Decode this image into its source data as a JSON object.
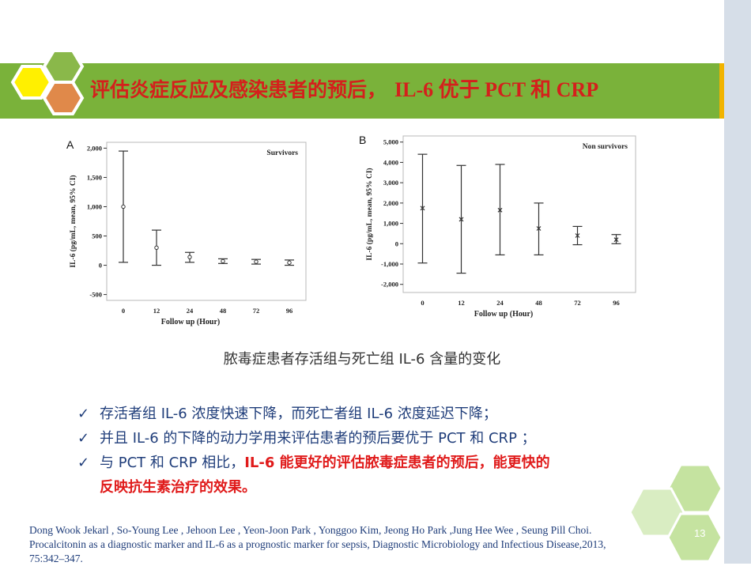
{
  "slide": {
    "title_main": "评估炎症反应及感染患者的预后，",
    "title_tail": "IL-6 优于 PCT 和 CRP",
    "caption": "脓毒症患者存活组与死亡组 IL-6 含量的变化",
    "bullets": [
      {
        "text": "存活者组 IL-6 浓度快速下降，而死亡者组 IL-6 浓度延迟下降；"
      },
      {
        "text": "并且 IL-6 的下降的动力学用来评估患者的预后要优于 PCT 和 CRP ；"
      },
      {
        "text": "与 PCT 和 CRP 相比，",
        "emphasis": "IL-6 能更好的评估脓毒症患者的预后，能更快的",
        "continuation": "反映抗生素治疗的效果。"
      }
    ],
    "citation_line1": "Dong Wook Jekarl , So-Young Lee , Jehoon Lee , Yeon-Joon Park , Yonggoo Kim, Jeong Ho Park ,Jung Hee Wee , Seung Pill Choi.",
    "citation_line2": "Procalcitonin as a diagnostic marker and IL-6 as a prognostic marker for sepsis, Diagnostic Microbiology and Infectious Disease,2013,",
    "citation_line3": "75:342–347.",
    "page_number": "13",
    "colors": {
      "title_bar": "#7ab23a",
      "title_text": "#d4201c",
      "bullet_text": "#1f3d7a",
      "emphasis": "#e01b1b",
      "side_rail": "#d6dee8"
    }
  },
  "chart_data": [
    {
      "type": "errorbar",
      "panel_label": "A",
      "legend": "Survivors",
      "xlabel": "Follow up (Hour)",
      "ylabel": "IL-6 (pg/mL, mean, 95% CI)",
      "categories": [
        "0",
        "12",
        "24",
        "48",
        "72",
        "96"
      ],
      "mean": [
        1000,
        300,
        140,
        70,
        60,
        45
      ],
      "lower": [
        50,
        0,
        50,
        30,
        20,
        0
      ],
      "upper": [
        1950,
        600,
        220,
        110,
        100,
        90
      ],
      "ylim": [
        -600,
        2100
      ],
      "yticks": [
        -500,
        0,
        500,
        1000,
        1500,
        2000
      ],
      "ytick_labels": [
        "-500",
        "0",
        "500",
        "1,000",
        "1,500",
        "2,000"
      ]
    },
    {
      "type": "errorbar",
      "panel_label": "B",
      "legend": "Non survivors",
      "xlabel": "Follow up (Hour)",
      "ylabel": "IL-6 (pg/mL, mean, 95% CI)",
      "categories": [
        "0",
        "12",
        "24",
        "48",
        "72",
        "96"
      ],
      "mean": [
        1750,
        1200,
        1650,
        750,
        400,
        200
      ],
      "lower": [
        -950,
        -1450,
        -550,
        -550,
        -50,
        0
      ],
      "upper": [
        4400,
        3850,
        3900,
        2000,
        850,
        450
      ],
      "ylim": [
        -2400,
        5300
      ],
      "yticks": [
        -2000,
        -1000,
        0,
        1000,
        2000,
        3000,
        4000,
        5000
      ],
      "ytick_labels": [
        "-2,000",
        "-1,000",
        "0",
        "1,000",
        "2,000",
        "3,000",
        "4,000",
        "5,000"
      ]
    }
  ]
}
